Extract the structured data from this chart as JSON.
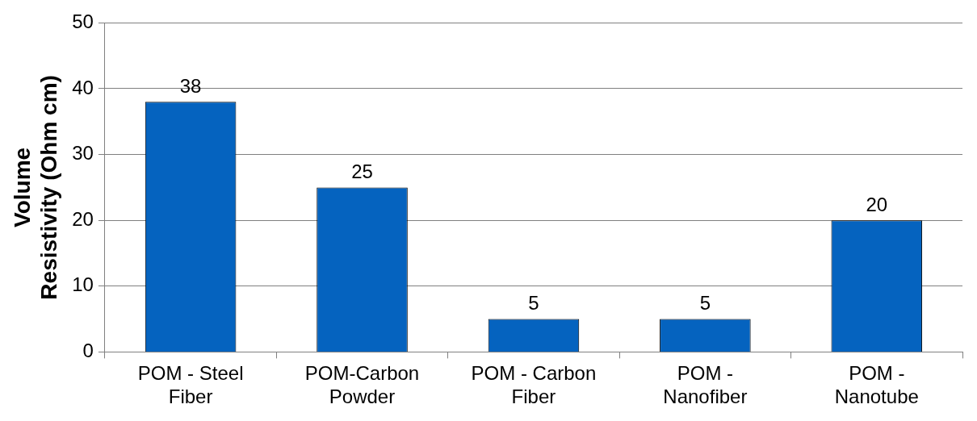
{
  "chart_data": {
    "type": "bar",
    "ylabel": "Volume Resistivity (Ohm cm)",
    "categories": [
      "POM - Steel Fiber",
      "POM-Carbon Powder",
      "POM - Carbon Fiber",
      "POM - Nanofiber",
      "POM - Nanotube"
    ],
    "values": [
      38,
      25,
      5,
      5,
      20
    ],
    "color": "#0563bf",
    "ylim": [
      0,
      50
    ],
    "yticks": [
      0,
      10,
      20,
      30,
      40,
      50
    ],
    "grid": "y",
    "data_labels": true,
    "legend": false
  }
}
